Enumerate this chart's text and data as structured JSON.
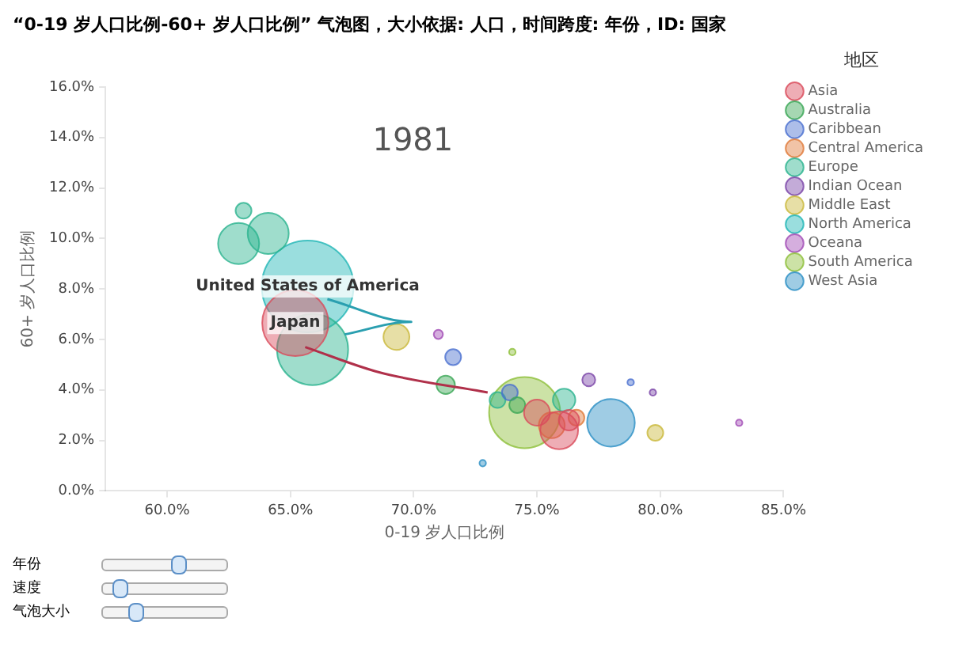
{
  "chart_data": {
    "type": "bubble",
    "title": "“0-19 岁人口比例-60+ 岁人口比例” 气泡图，大小依据: 人口，时间跨度: 年份，ID: 国家",
    "xlabel": "0-19 岁人口比例",
    "ylabel": "60+ 岁人口比例",
    "legend_title": "地区",
    "legend": "top right",
    "relative": false,
    "xlim": [
      57.5,
      85
    ],
    "xticks": [
      {
        "value": 60,
        "label": "60.0%"
      },
      {
        "value": 65,
        "label": "65.0%"
      },
      {
        "value": 70,
        "label": "70.0%"
      },
      {
        "value": 75,
        "label": "75.0%"
      },
      {
        "value": 80,
        "label": "80.0%"
      },
      {
        "value": 85,
        "label": "85.0%"
      }
    ],
    "ylim": [
      0,
      16
    ],
    "yticks": [
      {
        "value": 0,
        "label": "0.0%"
      },
      {
        "value": 2,
        "label": "2.0%"
      },
      {
        "value": 4,
        "label": "4.0%"
      },
      {
        "value": 6,
        "label": "6.0%"
      },
      {
        "value": 8,
        "label": "8.0%"
      },
      {
        "value": 10,
        "label": "10.0%"
      },
      {
        "value": 12,
        "label": "12.0%"
      },
      {
        "value": 14,
        "label": "14.0%"
      },
      {
        "value": 16,
        "label": "16.0%"
      }
    ],
    "annotations": [
      "1981",
      {
        "text": "United States of America",
        "x": 65.7,
        "y": 8.1
      },
      {
        "text": "Japan",
        "x": 65.2,
        "y": 6.65
      },
      "年份",
      "速度",
      "气泡大小"
    ],
    "series": [
      {
        "name": "Asia",
        "color": "#d94a5a",
        "x": [
          65.2,
          75,
          75.9,
          76.3
        ],
        "values": [
          6.65,
          3.1,
          2.4,
          2.8
        ],
        "sizes": [
          0.52,
          0.08,
          0.17,
          0.05
        ]
      },
      {
        "name": "Australia",
        "color": "#3aa655",
        "x": [
          71.3,
          74.2
        ],
        "values": [
          4.2,
          3.4
        ],
        "sizes": [
          0.04,
          0.03
        ]
      },
      {
        "name": "Caribbean",
        "color": "#4a6fcf",
        "x": [
          71.6,
          73.9,
          78.8
        ],
        "values": [
          5.3,
          3.9,
          4.3
        ],
        "sizes": [
          0.03,
          0.03,
          0.005
        ]
      },
      {
        "name": "Central America",
        "color": "#e07b39",
        "x": [
          75.6,
          76.6
        ],
        "values": [
          2.6,
          2.9
        ],
        "sizes": [
          0.08,
          0.03
        ]
      },
      {
        "name": "Europe",
        "color": "#2ab38f",
        "x": [
          62.9,
          64.1,
          63.1,
          65.9,
          76.1,
          73.4
        ],
        "values": [
          9.8,
          10.2,
          11.1,
          5.6,
          3.6,
          3.6
        ],
        "sizes": [
          0.2,
          0.2,
          0.03,
          0.6,
          0.06,
          0.03
        ]
      },
      {
        "name": "Indian Ocean",
        "color": "#7a45a8",
        "x": [
          77.1,
          79.7
        ],
        "values": [
          4.4,
          3.9
        ],
        "sizes": [
          0.02,
          0.005
        ]
      },
      {
        "name": "Middle East",
        "color": "#c9b83a",
        "x": [
          69.3,
          79.8
        ],
        "values": [
          6.1,
          2.3
        ],
        "sizes": [
          0.08,
          0.03
        ]
      },
      {
        "name": "North America",
        "color": "#1fb5b5",
        "x": [
          65.7
        ],
        "values": [
          8.1
        ],
        "sizes": [
          1
        ]
      },
      {
        "name": "Oceana",
        "color": "#a14bb5",
        "x": [
          71,
          83.2
        ],
        "values": [
          6.2,
          2.7
        ],
        "sizes": [
          0.01,
          0.005
        ]
      },
      {
        "name": "South America",
        "color": "#8dbf3a",
        "x": [
          74.5,
          74
        ],
        "values": [
          3.1,
          5.5
        ],
        "sizes": [
          0.6,
          0.005
        ]
      },
      {
        "name": "West Asia",
        "color": "#2a8fc4",
        "x": [
          78,
          72.8
        ],
        "values": [
          2.7,
          1.1
        ],
        "sizes": [
          0.27,
          0.005
        ]
      },
      {
        "type": "line",
        "color": "#b0304a",
        "x": [
          65.6,
          68.6,
          73
        ],
        "values": [
          5.7,
          4.7,
          3.9
        ]
      },
      {
        "type": "line",
        "color": "#2a9fb0",
        "x": [
          66.5,
          69.9,
          67.2
        ],
        "values": [
          7.6,
          6.7,
          6.2
        ]
      }
    ]
  }
}
